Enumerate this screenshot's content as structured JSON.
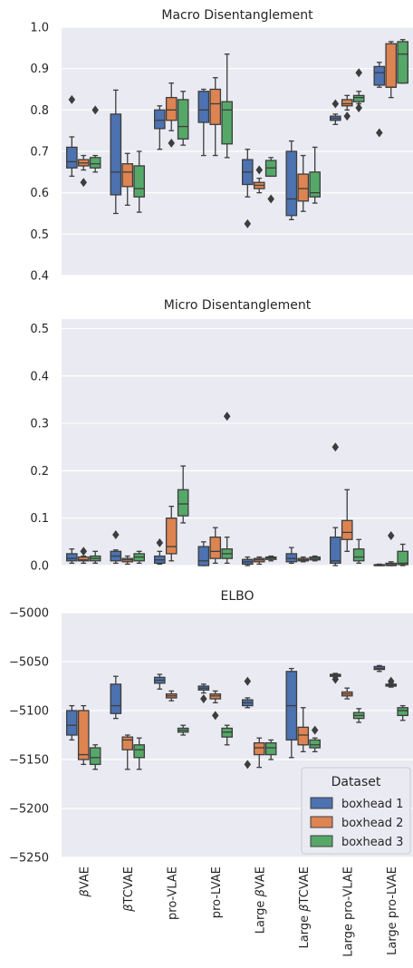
{
  "chart_data": {
    "type": "box",
    "categories": [
      "βVAE",
      "βTCVAE",
      "pro-VLAE",
      "pro-LVAE",
      "Large βVAE",
      "Large βTCVAE",
      "Large pro-VLAE",
      "Large pro-LVAE"
    ],
    "xtick_labels": [
      {
        "prefix": "",
        "beta": "β",
        "suffix": "VAE"
      },
      {
        "prefix": "",
        "beta": "β",
        "suffix": "TCVAE"
      },
      {
        "prefix": "pro-VLAE",
        "beta": "",
        "suffix": ""
      },
      {
        "prefix": "pro-LVAE",
        "beta": "",
        "suffix": ""
      },
      {
        "prefix": "Large ",
        "beta": "β",
        "suffix": "VAE"
      },
      {
        "prefix": "Large ",
        "beta": "β",
        "suffix": "TCVAE"
      },
      {
        "prefix": "Large pro-VLAE",
        "beta": "",
        "suffix": ""
      },
      {
        "prefix": "Large pro-LVAE",
        "beta": "",
        "suffix": ""
      }
    ],
    "legend": {
      "title": "Dataset",
      "entries": [
        {
          "name": "boxhead 1",
          "color": "#4c72b0"
        },
        {
          "name": "boxhead 2",
          "color": "#dd8452"
        },
        {
          "name": "boxhead 3",
          "color": "#55a868"
        }
      ],
      "placement": "lower-right of bottom panel"
    },
    "panels": [
      {
        "title": "Macro Disentanglement",
        "ylim": [
          0.4,
          1.0
        ],
        "yticks": [
          0.4,
          0.5,
          0.6,
          0.7,
          0.8,
          0.9,
          1.0
        ],
        "ytick_labels": [
          "0.4",
          "0.5",
          "0.6",
          "0.7",
          "0.8",
          "0.9",
          "1.0"
        ],
        "boxes": [
          [
            {
              "whislo": 0.64,
              "q1": 0.66,
              "med": 0.675,
              "q3": 0.71,
              "whishi": 0.735,
              "fliers": [
                0.825
              ]
            },
            {
              "whislo": 0.655,
              "q1": 0.665,
              "med": 0.672,
              "q3": 0.68,
              "whishi": 0.69,
              "fliers": [
                0.625
              ]
            },
            {
              "whislo": 0.65,
              "q1": 0.66,
              "med": 0.67,
              "q3": 0.685,
              "whishi": 0.69,
              "fliers": [
                0.8
              ]
            }
          ],
          [
            {
              "whislo": 0.55,
              "q1": 0.595,
              "med": 0.65,
              "q3": 0.79,
              "whishi": 0.848,
              "fliers": []
            },
            {
              "whislo": 0.57,
              "q1": 0.615,
              "med": 0.65,
              "q3": 0.67,
              "whishi": 0.695,
              "fliers": []
            },
            {
              "whislo": 0.553,
              "q1": 0.59,
              "med": 0.61,
              "q3": 0.665,
              "whishi": 0.7,
              "fliers": []
            }
          ],
          [
            {
              "whislo": 0.705,
              "q1": 0.755,
              "med": 0.775,
              "q3": 0.8,
              "whishi": 0.81,
              "fliers": []
            },
            {
              "whislo": 0.75,
              "q1": 0.775,
              "med": 0.8,
              "q3": 0.83,
              "whishi": 0.865,
              "fliers": [
                0.72
              ]
            },
            {
              "whislo": 0.715,
              "q1": 0.73,
              "med": 0.76,
              "q3": 0.825,
              "whishi": 0.845,
              "fliers": []
            }
          ],
          [
            {
              "whislo": 0.69,
              "q1": 0.77,
              "med": 0.8,
              "q3": 0.845,
              "whishi": 0.85,
              "fliers": []
            },
            {
              "whislo": 0.69,
              "q1": 0.765,
              "med": 0.815,
              "q3": 0.85,
              "whishi": 0.878,
              "fliers": []
            },
            {
              "whislo": 0.685,
              "q1": 0.718,
              "med": 0.8,
              "q3": 0.82,
              "whishi": 0.935,
              "fliers": []
            }
          ],
          [
            {
              "whislo": 0.59,
              "q1": 0.62,
              "med": 0.65,
              "q3": 0.68,
              "whishi": 0.705,
              "fliers": [
                0.525
              ]
            },
            {
              "whislo": 0.6,
              "q1": 0.61,
              "med": 0.618,
              "q3": 0.625,
              "whishi": 0.635,
              "fliers": [
                0.655
              ]
            },
            {
              "whislo": 0.64,
              "q1": 0.64,
              "med": 0.66,
              "q3": 0.678,
              "whishi": 0.685,
              "fliers": [
                0.585
              ]
            }
          ],
          [
            {
              "whislo": 0.535,
              "q1": 0.545,
              "med": 0.585,
              "q3": 0.7,
              "whishi": 0.725,
              "fliers": []
            },
            {
              "whislo": 0.555,
              "q1": 0.58,
              "med": 0.61,
              "q3": 0.645,
              "whishi": 0.69,
              "fliers": []
            },
            {
              "whislo": 0.575,
              "q1": 0.59,
              "med": 0.6,
              "q3": 0.65,
              "whishi": 0.71,
              "fliers": []
            }
          ],
          [
            {
              "whislo": 0.765,
              "q1": 0.775,
              "med": 0.78,
              "q3": 0.785,
              "whishi": 0.79,
              "fliers": [
                0.815
              ]
            },
            {
              "whislo": 0.8,
              "q1": 0.81,
              "med": 0.815,
              "q3": 0.825,
              "whishi": 0.835,
              "fliers": [
                0.785
              ]
            },
            {
              "whislo": 0.815,
              "q1": 0.82,
              "med": 0.83,
              "q3": 0.835,
              "whishi": 0.845,
              "fliers": [
                0.805,
                0.89
              ]
            }
          ],
          [
            {
              "whislo": 0.855,
              "q1": 0.86,
              "med": 0.89,
              "q3": 0.905,
              "whishi": 0.915,
              "fliers": [
                0.745
              ]
            },
            {
              "whislo": 0.83,
              "q1": 0.855,
              "med": 0.855,
              "q3": 0.96,
              "whishi": 0.965,
              "fliers": []
            },
            {
              "whislo": 0.865,
              "q1": 0.865,
              "med": 0.935,
              "q3": 0.965,
              "whishi": 0.97,
              "fliers": []
            }
          ]
        ]
      },
      {
        "title": "Micro Disentanglement",
        "ylim": [
          0.0,
          0.52
        ],
        "yticks": [
          0.0,
          0.1,
          0.2,
          0.3,
          0.4,
          0.5
        ],
        "ytick_labels": [
          "0.0",
          "0.1",
          "0.2",
          "0.3",
          "0.4",
          "0.5"
        ],
        "boxes": [
          [
            {
              "whislo": 0.005,
              "q1": 0.01,
              "med": 0.015,
              "q3": 0.025,
              "whishi": 0.035,
              "fliers": []
            },
            {
              "whislo": 0.005,
              "q1": 0.01,
              "med": 0.012,
              "q3": 0.018,
              "whishi": 0.02,
              "fliers": [
                0.03
              ]
            },
            {
              "whislo": 0.005,
              "q1": 0.01,
              "med": 0.015,
              "q3": 0.02,
              "whishi": 0.03,
              "fliers": []
            }
          ],
          [
            {
              "whislo": 0.005,
              "q1": 0.01,
              "med": 0.02,
              "q3": 0.03,
              "whishi": 0.033,
              "fliers": [
                0.065
              ]
            },
            {
              "whislo": 0.003,
              "q1": 0.008,
              "med": 0.012,
              "q3": 0.015,
              "whishi": 0.02,
              "fliers": []
            },
            {
              "whislo": 0.005,
              "q1": 0.01,
              "med": 0.018,
              "q3": 0.025,
              "whishi": 0.03,
              "fliers": []
            }
          ],
          [
            {
              "whislo": 0.003,
              "q1": 0.005,
              "med": 0.012,
              "q3": 0.02,
              "whishi": 0.03,
              "fliers": [
                0.048
              ]
            },
            {
              "whislo": 0.01,
              "q1": 0.025,
              "med": 0.04,
              "q3": 0.1,
              "whishi": 0.125,
              "fliers": []
            },
            {
              "whislo": 0.09,
              "q1": 0.105,
              "med": 0.13,
              "q3": 0.16,
              "whishi": 0.21,
              "fliers": []
            }
          ],
          [
            {
              "whislo": 0.0,
              "q1": 0.0,
              "med": 0.01,
              "q3": 0.04,
              "whishi": 0.05,
              "fliers": []
            },
            {
              "whislo": 0.005,
              "q1": 0.015,
              "med": 0.03,
              "q3": 0.06,
              "whishi": 0.08,
              "fliers": []
            },
            {
              "whislo": 0.005,
              "q1": 0.015,
              "med": 0.025,
              "q3": 0.035,
              "whishi": 0.06,
              "fliers": [
                0.315
              ]
            }
          ],
          [
            {
              "whislo": 0.0,
              "q1": 0.003,
              "med": 0.008,
              "q3": 0.013,
              "whishi": 0.018,
              "fliers": []
            },
            {
              "whislo": 0.003,
              "q1": 0.008,
              "med": 0.012,
              "q3": 0.015,
              "whishi": 0.018,
              "fliers": []
            },
            {
              "whislo": 0.01,
              "q1": 0.013,
              "med": 0.016,
              "q3": 0.018,
              "whishi": 0.02,
              "fliers": []
            }
          ],
          [
            {
              "whislo": 0.005,
              "q1": 0.008,
              "med": 0.015,
              "q3": 0.025,
              "whishi": 0.038,
              "fliers": []
            },
            {
              "whislo": 0.008,
              "q1": 0.01,
              "med": 0.012,
              "q3": 0.015,
              "whishi": 0.018,
              "fliers": []
            },
            {
              "whislo": 0.01,
              "q1": 0.012,
              "med": 0.015,
              "q3": 0.018,
              "whishi": 0.02,
              "fliers": []
            }
          ],
          [
            {
              "whislo": 0.0,
              "q1": 0.005,
              "med": 0.01,
              "q3": 0.06,
              "whishi": 0.08,
              "fliers": [
                0.25
              ]
            },
            {
              "whislo": 0.03,
              "q1": 0.055,
              "med": 0.07,
              "q3": 0.095,
              "whishi": 0.16,
              "fliers": []
            },
            {
              "whislo": 0.005,
              "q1": 0.01,
              "med": 0.018,
              "q3": 0.035,
              "whishi": 0.055,
              "fliers": []
            }
          ],
          [
            {
              "whislo": 0.0,
              "q1": 0.0,
              "med": 0.0,
              "q3": 0.002,
              "whishi": 0.003,
              "fliers": []
            },
            {
              "whislo": 0.0,
              "q1": 0.0,
              "med": 0.002,
              "q3": 0.005,
              "whishi": 0.008,
              "fliers": [
                0.063
              ]
            },
            {
              "whislo": 0.0,
              "q1": 0.002,
              "med": 0.005,
              "q3": 0.03,
              "whishi": 0.045,
              "fliers": []
            }
          ]
        ]
      },
      {
        "title": "ELBO",
        "ylim": [
          -5250,
          -5000
        ],
        "yticks": [
          -5250,
          -5200,
          -5150,
          -5100,
          -5050,
          -5000
        ],
        "ytick_labels": [
          "−5250",
          "−5200",
          "−5150",
          "−5100",
          "−5050",
          "−5000"
        ],
        "boxes": [
          [
            {
              "whislo": -5130,
              "q1": -5125,
              "med": -5115,
              "q3": -5100,
              "whishi": -5095,
              "fliers": []
            },
            {
              "whislo": -5155,
              "q1": -5150,
              "med": -5145,
              "q3": -5100,
              "whishi": -5095,
              "fliers": []
            },
            {
              "whislo": -5160,
              "q1": -5155,
              "med": -5148,
              "q3": -5138,
              "whishi": -5135,
              "fliers": []
            }
          ],
          [
            {
              "whislo": -5108,
              "q1": -5103,
              "med": -5095,
              "q3": -5073,
              "whishi": -5065,
              "fliers": []
            },
            {
              "whislo": -5160,
              "q1": -5140,
              "med": -5130,
              "q3": -5127,
              "whishi": -5125,
              "fliers": []
            },
            {
              "whislo": -5160,
              "q1": -5148,
              "med": -5140,
              "q3": -5135,
              "whishi": -5128,
              "fliers": []
            }
          ],
          [
            {
              "whislo": -5078,
              "q1": -5072,
              "med": -5069,
              "q3": -5066,
              "whishi": -5063,
              "fliers": []
            },
            {
              "whislo": -5090,
              "q1": -5087,
              "med": -5085,
              "q3": -5083,
              "whishi": -5080,
              "fliers": []
            },
            {
              "whislo": -5125,
              "q1": -5122,
              "med": -5120,
              "q3": -5118,
              "whishi": -5115,
              "fliers": []
            }
          ],
          [
            {
              "whislo": -5082,
              "q1": -5079,
              "med": -5077,
              "q3": -5075,
              "whishi": -5073,
              "fliers": [
                -5088
              ]
            },
            {
              "whislo": -5092,
              "q1": -5088,
              "med": -5085,
              "q3": -5083,
              "whishi": -5080,
              "fliers": [
                -5105
              ]
            },
            {
              "whislo": -5135,
              "q1": -5127,
              "med": -5122,
              "q3": -5118,
              "whishi": -5115,
              "fliers": []
            }
          ],
          [
            {
              "whislo": -5097,
              "q1": -5095,
              "med": -5092,
              "q3": -5089,
              "whishi": -5087,
              "fliers": [
                -5070,
                -5155
              ]
            },
            {
              "whislo": -5158,
              "q1": -5145,
              "med": -5138,
              "q3": -5133,
              "whishi": -5128,
              "fliers": []
            },
            {
              "whislo": -5150,
              "q1": -5145,
              "med": -5138,
              "q3": -5133,
              "whishi": -5130,
              "fliers": []
            }
          ],
          [
            {
              "whislo": -5148,
              "q1": -5130,
              "med": -5095,
              "q3": -5060,
              "whishi": -5057,
              "fliers": []
            },
            {
              "whislo": -5142,
              "q1": -5135,
              "med": -5125,
              "q3": -5117,
              "whishi": -5097,
              "fliers": []
            },
            {
              "whislo": -5142,
              "q1": -5138,
              "med": -5135,
              "q3": -5130,
              "whishi": -5128,
              "fliers": [
                -5120
              ]
            }
          ],
          [
            {
              "whislo": -5066,
              "q1": -5065,
              "med": -5064,
              "q3": -5063,
              "whishi": -5062,
              "fliers": [
                -5068
              ]
            },
            {
              "whislo": -5088,
              "q1": -5085,
              "med": -5083,
              "q3": -5081,
              "whishi": -5077,
              "fliers": []
            },
            {
              "whislo": -5112,
              "q1": -5108,
              "med": -5105,
              "q3": -5102,
              "whishi": -5098,
              "fliers": []
            }
          ],
          [
            {
              "whislo": -5060,
              "q1": -5058,
              "med": -5057,
              "q3": -5055,
              "whishi": -5054,
              "fliers": []
            },
            {
              "whislo": -5076,
              "q1": -5075,
              "med": -5074,
              "q3": -5073,
              "whishi": -5072,
              "fliers": [
                -5070
              ]
            },
            {
              "whislo": -5110,
              "q1": -5105,
              "med": -5100,
              "q3": -5097,
              "whishi": -5095,
              "fliers": []
            }
          ]
        ]
      }
    ]
  }
}
